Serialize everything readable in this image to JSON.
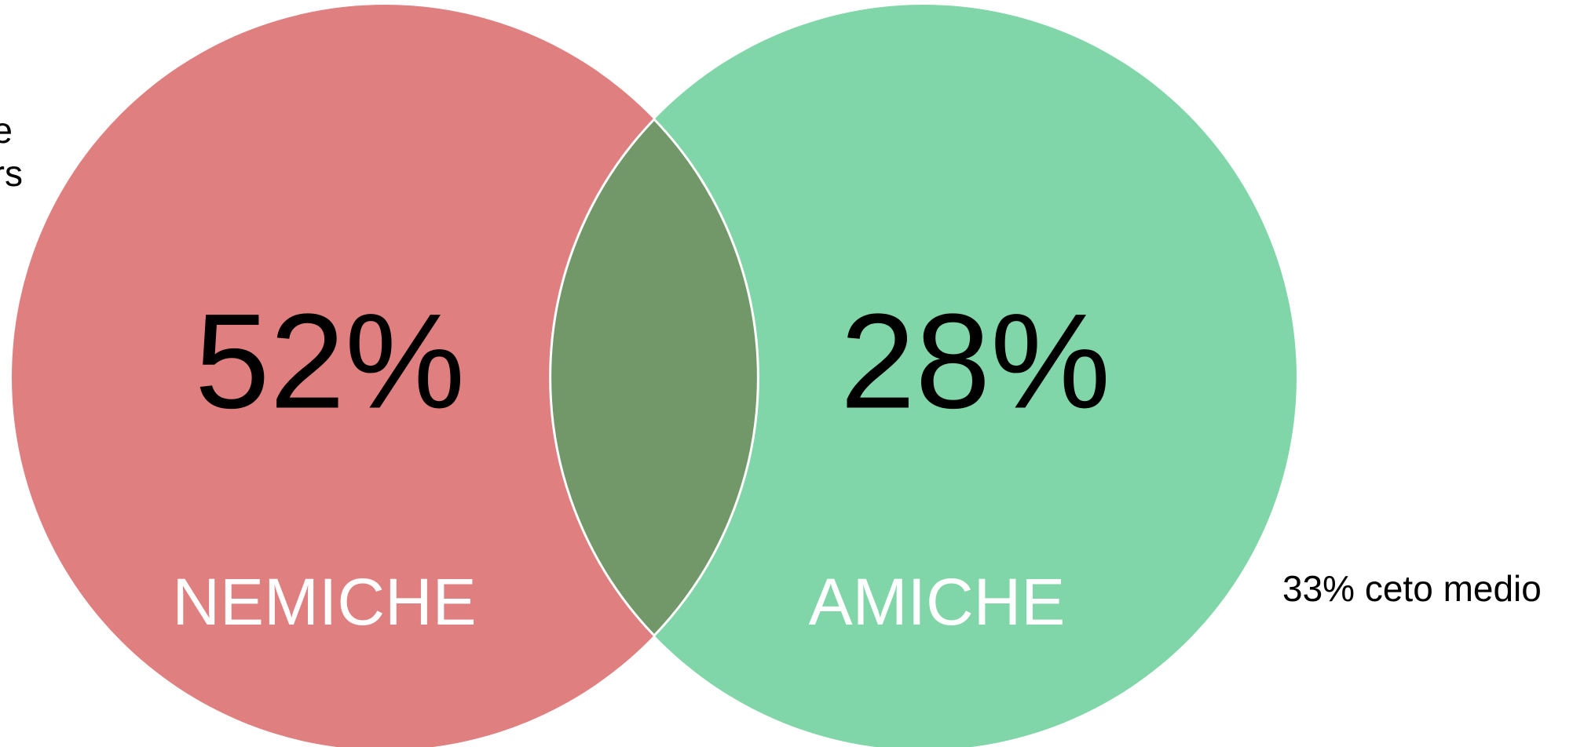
{
  "sets": [
    {
      "value_label": "52%",
      "label": "NEMICHE",
      "color": "#e07f80"
    },
    {
      "value_label": "28%",
      "label": "AMICHE",
      "color": "#80d6a8"
    }
  ],
  "overlap_color": "#729869",
  "side_note": "33% ceto medio",
  "cut_text": [
    "e",
    "rs"
  ]
}
